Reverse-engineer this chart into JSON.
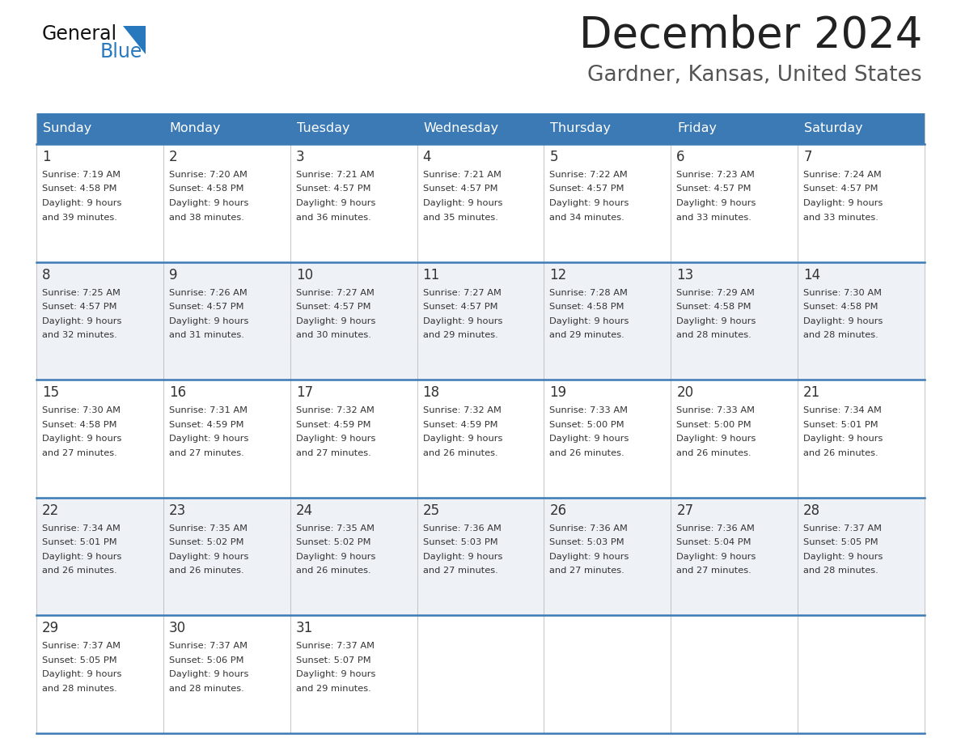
{
  "title": "December 2024",
  "subtitle": "Gardner, Kansas, United States",
  "header_color": "#3c7ab5",
  "header_text_color": "#ffffff",
  "cell_bg_white": "#ffffff",
  "cell_bg_gray": "#eef2f7",
  "border_color": "#3c7ab5",
  "grid_line_color": "#bbbbbb",
  "day_names": [
    "Sunday",
    "Monday",
    "Tuesday",
    "Wednesday",
    "Thursday",
    "Friday",
    "Saturday"
  ],
  "weeks": [
    [
      {
        "day": 1,
        "sunrise": "7:19 AM",
        "sunset": "4:58 PM",
        "daylight": "9 hours",
        "daylight2": "and 39 minutes."
      },
      {
        "day": 2,
        "sunrise": "7:20 AM",
        "sunset": "4:58 PM",
        "daylight": "9 hours",
        "daylight2": "and 38 minutes."
      },
      {
        "day": 3,
        "sunrise": "7:21 AM",
        "sunset": "4:57 PM",
        "daylight": "9 hours",
        "daylight2": "and 36 minutes."
      },
      {
        "day": 4,
        "sunrise": "7:21 AM",
        "sunset": "4:57 PM",
        "daylight": "9 hours",
        "daylight2": "and 35 minutes."
      },
      {
        "day": 5,
        "sunrise": "7:22 AM",
        "sunset": "4:57 PM",
        "daylight": "9 hours",
        "daylight2": "and 34 minutes."
      },
      {
        "day": 6,
        "sunrise": "7:23 AM",
        "sunset": "4:57 PM",
        "daylight": "9 hours",
        "daylight2": "and 33 minutes."
      },
      {
        "day": 7,
        "sunrise": "7:24 AM",
        "sunset": "4:57 PM",
        "daylight": "9 hours",
        "daylight2": "and 33 minutes."
      }
    ],
    [
      {
        "day": 8,
        "sunrise": "7:25 AM",
        "sunset": "4:57 PM",
        "daylight": "9 hours",
        "daylight2": "and 32 minutes."
      },
      {
        "day": 9,
        "sunrise": "7:26 AM",
        "sunset": "4:57 PM",
        "daylight": "9 hours",
        "daylight2": "and 31 minutes."
      },
      {
        "day": 10,
        "sunrise": "7:27 AM",
        "sunset": "4:57 PM",
        "daylight": "9 hours",
        "daylight2": "and 30 minutes."
      },
      {
        "day": 11,
        "sunrise": "7:27 AM",
        "sunset": "4:57 PM",
        "daylight": "9 hours",
        "daylight2": "and 29 minutes."
      },
      {
        "day": 12,
        "sunrise": "7:28 AM",
        "sunset": "4:58 PM",
        "daylight": "9 hours",
        "daylight2": "and 29 minutes."
      },
      {
        "day": 13,
        "sunrise": "7:29 AM",
        "sunset": "4:58 PM",
        "daylight": "9 hours",
        "daylight2": "and 28 minutes."
      },
      {
        "day": 14,
        "sunrise": "7:30 AM",
        "sunset": "4:58 PM",
        "daylight": "9 hours",
        "daylight2": "and 28 minutes."
      }
    ],
    [
      {
        "day": 15,
        "sunrise": "7:30 AM",
        "sunset": "4:58 PM",
        "daylight": "9 hours",
        "daylight2": "and 27 minutes."
      },
      {
        "day": 16,
        "sunrise": "7:31 AM",
        "sunset": "4:59 PM",
        "daylight": "9 hours",
        "daylight2": "and 27 minutes."
      },
      {
        "day": 17,
        "sunrise": "7:32 AM",
        "sunset": "4:59 PM",
        "daylight": "9 hours",
        "daylight2": "and 27 minutes."
      },
      {
        "day": 18,
        "sunrise": "7:32 AM",
        "sunset": "4:59 PM",
        "daylight": "9 hours",
        "daylight2": "and 26 minutes."
      },
      {
        "day": 19,
        "sunrise": "7:33 AM",
        "sunset": "5:00 PM",
        "daylight": "9 hours",
        "daylight2": "and 26 minutes."
      },
      {
        "day": 20,
        "sunrise": "7:33 AM",
        "sunset": "5:00 PM",
        "daylight": "9 hours",
        "daylight2": "and 26 minutes."
      },
      {
        "day": 21,
        "sunrise": "7:34 AM",
        "sunset": "5:01 PM",
        "daylight": "9 hours",
        "daylight2": "and 26 minutes."
      }
    ],
    [
      {
        "day": 22,
        "sunrise": "7:34 AM",
        "sunset": "5:01 PM",
        "daylight": "9 hours",
        "daylight2": "and 26 minutes."
      },
      {
        "day": 23,
        "sunrise": "7:35 AM",
        "sunset": "5:02 PM",
        "daylight": "9 hours",
        "daylight2": "and 26 minutes."
      },
      {
        "day": 24,
        "sunrise": "7:35 AM",
        "sunset": "5:02 PM",
        "daylight": "9 hours",
        "daylight2": "and 26 minutes."
      },
      {
        "day": 25,
        "sunrise": "7:36 AM",
        "sunset": "5:03 PM",
        "daylight": "9 hours",
        "daylight2": "and 27 minutes."
      },
      {
        "day": 26,
        "sunrise": "7:36 AM",
        "sunset": "5:03 PM",
        "daylight": "9 hours",
        "daylight2": "and 27 minutes."
      },
      {
        "day": 27,
        "sunrise": "7:36 AM",
        "sunset": "5:04 PM",
        "daylight": "9 hours",
        "daylight2": "and 27 minutes."
      },
      {
        "day": 28,
        "sunrise": "7:37 AM",
        "sunset": "5:05 PM",
        "daylight": "9 hours",
        "daylight2": "and 28 minutes."
      }
    ],
    [
      {
        "day": 29,
        "sunrise": "7:37 AM",
        "sunset": "5:05 PM",
        "daylight": "9 hours",
        "daylight2": "and 28 minutes."
      },
      {
        "day": 30,
        "sunrise": "7:37 AM",
        "sunset": "5:06 PM",
        "daylight": "9 hours",
        "daylight2": "and 28 minutes."
      },
      {
        "day": 31,
        "sunrise": "7:37 AM",
        "sunset": "5:07 PM",
        "daylight": "9 hours",
        "daylight2": "and 29 minutes."
      },
      null,
      null,
      null,
      null
    ]
  ],
  "title_color": "#222222",
  "subtitle_color": "#555555",
  "logo_dark_color": "#111111",
  "logo_blue_color": "#2878be",
  "text_color": "#333333",
  "day_num_color": "#333333",
  "figwidth": 11.88,
  "figheight": 9.18,
  "dpi": 100
}
